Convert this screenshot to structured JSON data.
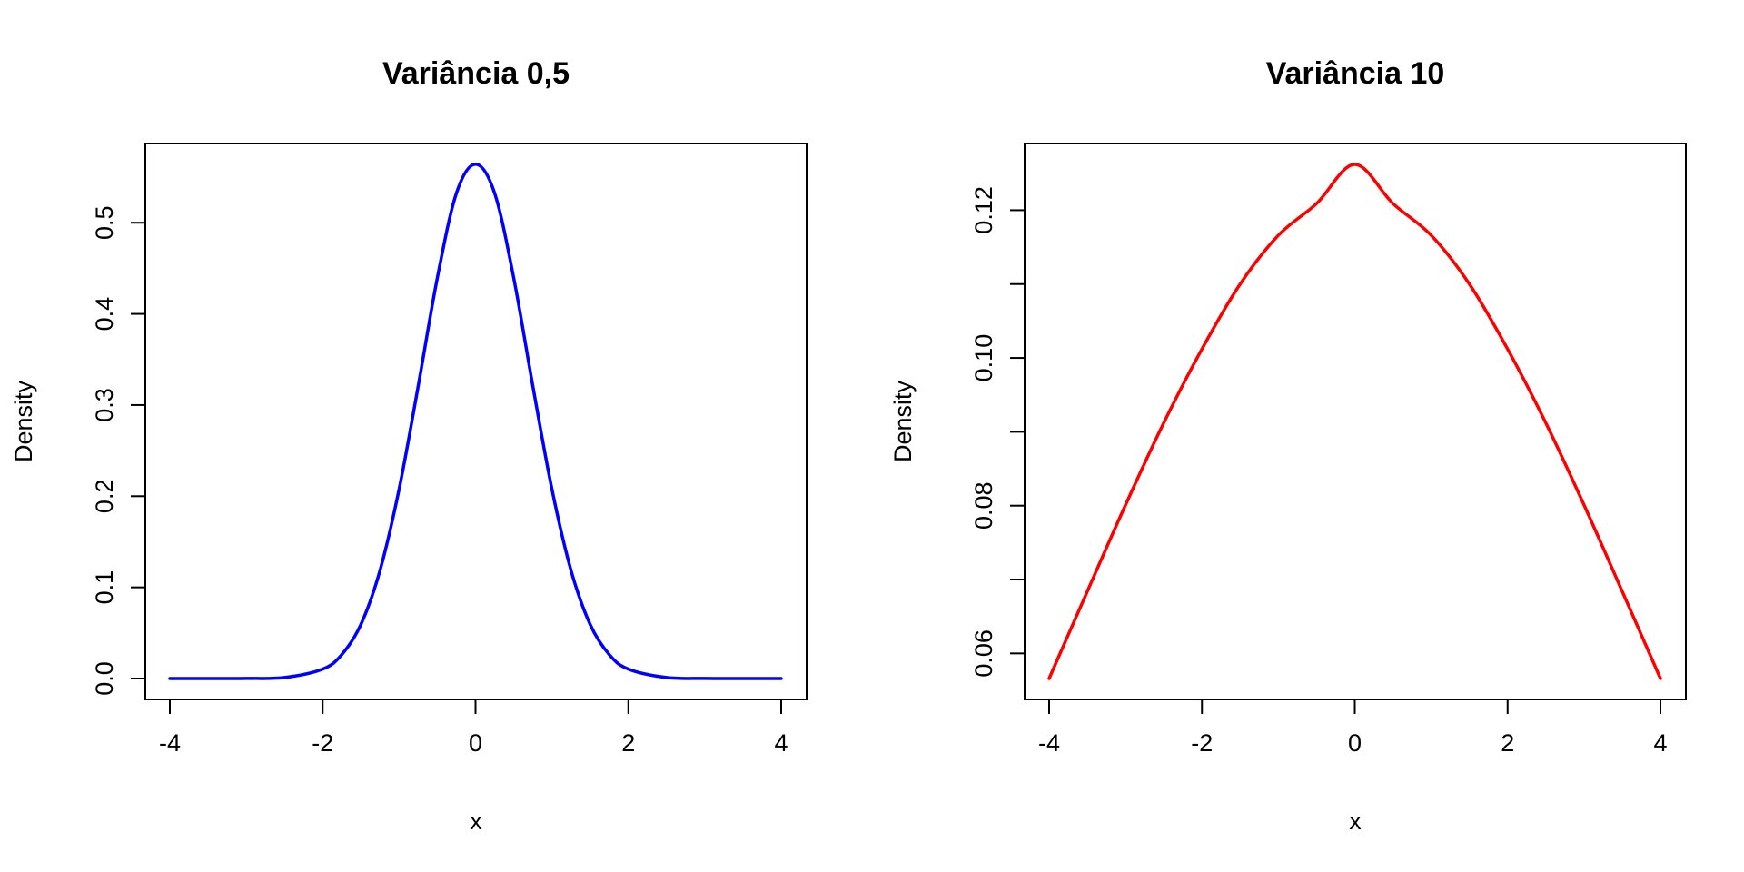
{
  "chart_data": [
    {
      "type": "line",
      "title": "Variância 0,5",
      "xlabel": "x",
      "ylabel": "Density",
      "xlim": [
        -4,
        4
      ],
      "ylim": [
        0,
        0.564
      ],
      "xticks": [
        -4,
        -2,
        0,
        2,
        4
      ],
      "xtick_labels": [
        "-4",
        "-2",
        "0",
        "2",
        "4"
      ],
      "yticks": [
        0.0,
        0.1,
        0.2,
        0.3,
        0.4,
        0.5
      ],
      "ytick_labels": [
        "0.0",
        "0.1",
        "0.2",
        "0.3",
        "0.4",
        "0.5"
      ],
      "grid": false,
      "color": "#0000ff",
      "series": [
        {
          "x": [
            -4,
            -3.5,
            -3,
            -2.5,
            -2,
            -1.75,
            -1.5,
            -1.25,
            -1,
            -0.75,
            -0.5,
            -0.25,
            0,
            0.25,
            0.5,
            0.75,
            1,
            1.25,
            1.5,
            1.75,
            2,
            2.5,
            3,
            3.5,
            4
          ],
          "y": [
            0.0,
            0.0,
            0.0001,
            0.0011,
            0.0103,
            0.0263,
            0.0593,
            0.1185,
            0.2076,
            0.3208,
            0.4394,
            0.5324,
            0.5642,
            0.5324,
            0.4394,
            0.3208,
            0.2076,
            0.1185,
            0.0593,
            0.0263,
            0.0103,
            0.0011,
            0.0001,
            0.0,
            0.0
          ]
        }
      ]
    },
    {
      "type": "line",
      "title": "Variância 10",
      "xlabel": "x",
      "ylabel": "Density",
      "xlim": [
        -4,
        4
      ],
      "ylim": [
        0.0566,
        0.1262
      ],
      "xticks": [
        -4,
        -2,
        0,
        2,
        4
      ],
      "xtick_labels": [
        "-4",
        "-2",
        "0",
        "2",
        "4"
      ],
      "yticks": [
        0.06,
        0.07,
        0.08,
        0.09,
        0.1,
        0.11,
        0.12
      ],
      "ytick_labels": [
        "0.06",
        "",
        "0.08",
        "",
        "0.10",
        "",
        "0.12"
      ],
      "grid": false,
      "color": "#ff0000",
      "series": [
        {
          "x": [
            -4,
            -3.5,
            -3,
            -2.5,
            -2,
            -1.5,
            -1,
            -0.5,
            0,
            0.5,
            1,
            1.5,
            2,
            2.5,
            3,
            3.5,
            4
          ],
          "y": [
            0.0566,
            0.0684,
            0.0801,
            0.0912,
            0.1012,
            0.11,
            0.1166,
            0.1209,
            0.1262,
            0.1209,
            0.1166,
            0.11,
            0.1012,
            0.0912,
            0.0801,
            0.0684,
            0.0566
          ]
        }
      ]
    }
  ]
}
